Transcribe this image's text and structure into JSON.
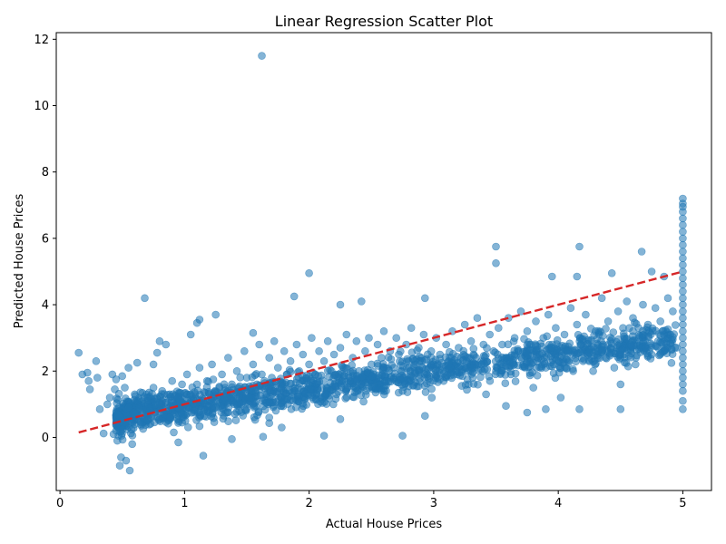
{
  "chart_data": {
    "type": "scatter",
    "title": "Linear Regression Scatter Plot",
    "xlabel": "Actual House Prices",
    "ylabel": "Predicted House Prices",
    "xlim": [
      -0.03,
      5.23
    ],
    "ylim": [
      -1.6,
      12.2
    ],
    "xticks": [
      0,
      1,
      2,
      3,
      4,
      5
    ],
    "yticks": [
      0,
      2,
      4,
      6,
      8,
      10,
      12
    ],
    "grid": false,
    "legend": "none",
    "point_color": "#1f77b4",
    "point_alpha": 0.55,
    "regression_line": {
      "x": [
        0.15,
        5.0
      ],
      "y": [
        0.15,
        5.0
      ],
      "color": "#d62728",
      "style": "dashed"
    },
    "series": [
      {
        "points": [
          [
            0.15,
            2.55
          ],
          [
            0.18,
            1.9
          ],
          [
            0.22,
            1.95
          ],
          [
            0.23,
            1.7
          ],
          [
            0.24,
            1.45
          ],
          [
            0.29,
            2.3
          ],
          [
            0.3,
            1.8
          ],
          [
            0.32,
            0.85
          ],
          [
            0.35,
            0.12
          ],
          [
            0.38,
            1.0
          ],
          [
            0.4,
            1.2
          ],
          [
            0.42,
            1.9
          ],
          [
            0.43,
            0.1
          ],
          [
            0.44,
            1.45
          ],
          [
            0.45,
            1.75
          ],
          [
            0.46,
            -0.1
          ],
          [
            0.47,
            0.05
          ],
          [
            0.48,
            -0.85
          ],
          [
            0.49,
            -0.6
          ],
          [
            0.5,
            1.85
          ],
          [
            0.52,
            1.5
          ],
          [
            0.53,
            -0.7
          ],
          [
            0.55,
            2.1
          ],
          [
            0.56,
            -1.0
          ],
          [
            0.58,
            -0.2
          ],
          [
            0.6,
            1.3
          ],
          [
            0.62,
            2.25
          ],
          [
            0.68,
            4.2
          ],
          [
            0.75,
            2.2
          ],
          [
            0.78,
            2.55
          ],
          [
            0.8,
            2.9
          ],
          [
            0.85,
            2.8
          ],
          [
            0.88,
            0.6
          ],
          [
            0.95,
            -0.15
          ],
          [
            1.05,
            3.1
          ],
          [
            1.1,
            3.45
          ],
          [
            1.12,
            3.55
          ],
          [
            1.15,
            -0.55
          ],
          [
            1.25,
            3.7
          ],
          [
            1.38,
            -0.05
          ],
          [
            1.55,
            3.15
          ],
          [
            1.62,
            11.5
          ],
          [
            1.63,
            0.02
          ],
          [
            1.68,
            0.6
          ],
          [
            1.78,
            0.3
          ],
          [
            1.88,
            4.25
          ],
          [
            2.0,
            4.95
          ],
          [
            2.12,
            0.05
          ],
          [
            2.25,
            4.0
          ],
          [
            2.25,
            0.55
          ],
          [
            2.42,
            4.1
          ],
          [
            2.75,
            0.05
          ],
          [
            2.93,
            4.2
          ],
          [
            2.93,
            0.65
          ],
          [
            3.5,
            5.75
          ],
          [
            3.5,
            5.25
          ],
          [
            3.58,
            0.95
          ],
          [
            3.75,
            0.75
          ],
          [
            3.9,
            0.85
          ],
          [
            3.95,
            4.85
          ],
          [
            4.15,
            4.85
          ],
          [
            4.17,
            5.75
          ],
          [
            4.17,
            0.85
          ],
          [
            4.43,
            4.95
          ],
          [
            4.5,
            0.85
          ],
          [
            4.5,
            1.6
          ],
          [
            4.67,
            5.6
          ],
          [
            4.75,
            5.0
          ],
          [
            4.85,
            4.85
          ],
          [
            0.5,
            0.5
          ],
          [
            0.55,
            0.9
          ],
          [
            0.6,
            0.7
          ],
          [
            0.62,
            1.1
          ],
          [
            0.65,
            0.4
          ],
          [
            0.7,
            1.2
          ],
          [
            0.72,
            0.8
          ],
          [
            0.75,
            1.5
          ],
          [
            0.78,
            0.6
          ],
          [
            0.8,
            1.0
          ],
          [
            0.82,
            1.4
          ],
          [
            0.85,
            0.9
          ],
          [
            0.88,
            1.3
          ],
          [
            0.9,
            1.7
          ],
          [
            0.92,
            0.7
          ],
          [
            0.95,
            1.2
          ],
          [
            0.98,
            1.6
          ],
          [
            1.0,
            1.0
          ],
          [
            1.02,
            1.9
          ],
          [
            1.05,
            1.3
          ],
          [
            1.08,
            0.8
          ],
          [
            1.1,
            1.6
          ],
          [
            1.12,
            2.1
          ],
          [
            1.15,
            1.1
          ],
          [
            1.18,
            1.7
          ],
          [
            1.2,
            1.3
          ],
          [
            1.22,
            2.2
          ],
          [
            1.25,
            0.9
          ],
          [
            1.28,
            1.5
          ],
          [
            1.3,
            1.9
          ],
          [
            1.32,
            1.2
          ],
          [
            1.35,
            2.4
          ],
          [
            1.38,
            1.6
          ],
          [
            1.4,
            1.0
          ],
          [
            1.42,
            2.0
          ],
          [
            1.45,
            1.4
          ],
          [
            1.48,
            2.6
          ],
          [
            1.5,
            1.8
          ],
          [
            1.52,
            1.2
          ],
          [
            1.55,
            2.2
          ],
          [
            1.58,
            1.6
          ],
          [
            1.6,
            2.8
          ],
          [
            1.62,
            1.9
          ],
          [
            1.65,
            1.3
          ],
          [
            1.68,
            2.4
          ],
          [
            1.7,
            1.8
          ],
          [
            1.72,
            2.9
          ],
          [
            1.75,
            2.1
          ],
          [
            1.78,
            1.5
          ],
          [
            1.8,
            2.6
          ],
          [
            1.82,
            1.9
          ],
          [
            1.85,
            2.3
          ],
          [
            1.88,
            1.4
          ],
          [
            1.9,
            2.8
          ],
          [
            1.92,
            2.0
          ],
          [
            1.95,
            2.5
          ],
          [
            1.98,
            1.7
          ],
          [
            2.0,
            2.2
          ],
          [
            2.02,
            3.0
          ],
          [
            2.05,
            1.9
          ],
          [
            2.08,
            2.6
          ],
          [
            2.1,
            1.5
          ],
          [
            2.12,
            2.3
          ],
          [
            2.15,
            2.9
          ],
          [
            2.18,
            2.0
          ],
          [
            2.2,
            2.5
          ],
          [
            2.22,
            1.3
          ],
          [
            2.25,
            2.7
          ],
          [
            2.28,
            2.1
          ],
          [
            2.3,
            3.1
          ],
          [
            2.32,
            1.8
          ],
          [
            2.35,
            2.4
          ],
          [
            2.38,
            2.9
          ],
          [
            2.4,
            2.0
          ],
          [
            2.42,
            1.6
          ],
          [
            2.45,
            2.6
          ],
          [
            2.48,
            3.0
          ],
          [
            2.5,
            2.2
          ],
          [
            2.52,
            1.9
          ],
          [
            2.55,
            2.8
          ],
          [
            2.58,
            2.4
          ],
          [
            2.6,
            3.2
          ],
          [
            2.62,
            1.7
          ],
          [
            2.65,
            2.6
          ],
          [
            2.68,
            2.1
          ],
          [
            2.7,
            3.0
          ],
          [
            2.72,
            2.5
          ],
          [
            2.75,
            1.4
          ],
          [
            2.78,
            2.8
          ],
          [
            2.8,
            2.3
          ],
          [
            2.82,
            3.3
          ],
          [
            2.85,
            2.0
          ],
          [
            2.88,
            2.7
          ],
          [
            2.9,
            2.4
          ],
          [
            2.92,
            3.1
          ],
          [
            2.95,
            1.9
          ],
          [
            2.98,
            2.6
          ],
          [
            3.0,
            2.2
          ],
          [
            3.02,
            3.0
          ],
          [
            3.05,
            2.5
          ],
          [
            3.08,
            1.7
          ],
          [
            3.1,
            2.8
          ],
          [
            3.12,
            2.3
          ],
          [
            3.15,
            3.2
          ],
          [
            3.18,
            2.0
          ],
          [
            3.2,
            2.7
          ],
          [
            3.22,
            2.4
          ],
          [
            3.25,
            3.4
          ],
          [
            3.28,
            1.6
          ],
          [
            3.3,
            2.9
          ],
          [
            3.32,
            2.5
          ],
          [
            3.35,
            3.6
          ],
          [
            3.38,
            2.2
          ],
          [
            3.4,
            2.8
          ],
          [
            3.42,
            1.3
          ],
          [
            3.45,
            3.1
          ],
          [
            3.48,
            2.6
          ],
          [
            3.5,
            2.0
          ],
          [
            3.52,
            3.3
          ],
          [
            3.55,
            2.8
          ],
          [
            3.58,
            2.4
          ],
          [
            3.6,
            3.6
          ],
          [
            3.62,
            1.9
          ],
          [
            3.65,
            3.0
          ],
          [
            3.68,
            2.6
          ],
          [
            3.7,
            3.8
          ],
          [
            3.72,
            2.2
          ],
          [
            3.75,
            3.2
          ],
          [
            3.78,
            2.8
          ],
          [
            3.8,
            1.5
          ],
          [
            3.82,
            3.5
          ],
          [
            3.85,
            2.5
          ],
          [
            3.88,
            3.0
          ],
          [
            3.9,
            2.1
          ],
          [
            3.92,
            3.7
          ],
          [
            3.95,
            2.7
          ],
          [
            3.98,
            3.3
          ],
          [
            4.0,
            2.3
          ],
          [
            4.02,
            1.2
          ],
          [
            4.05,
            3.1
          ],
          [
            4.08,
            2.6
          ],
          [
            4.1,
            3.9
          ],
          [
            4.12,
            2.0
          ],
          [
            4.15,
            3.4
          ],
          [
            4.18,
            2.8
          ],
          [
            4.2,
            2.3
          ],
          [
            4.22,
            3.7
          ],
          [
            4.25,
            2.9
          ],
          [
            4.28,
            2.0
          ],
          [
            4.3,
            3.2
          ],
          [
            4.32,
            2.6
          ],
          [
            4.35,
            4.2
          ],
          [
            4.38,
            2.4
          ],
          [
            4.4,
            3.5
          ],
          [
            4.42,
            2.9
          ],
          [
            4.45,
            2.1
          ],
          [
            4.48,
            3.8
          ],
          [
            4.5,
            2.6
          ],
          [
            4.52,
            3.3
          ],
          [
            4.55,
            4.1
          ],
          [
            4.58,
            2.8
          ],
          [
            4.6,
            3.6
          ],
          [
            4.62,
            2.2
          ],
          [
            4.65,
            3.0
          ],
          [
            4.68,
            4.0
          ],
          [
            4.7,
            2.7
          ],
          [
            4.72,
            3.4
          ],
          [
            4.75,
            2.5
          ],
          [
            4.78,
            3.9
          ],
          [
            4.8,
            2.9
          ],
          [
            4.82,
            3.5
          ],
          [
            4.85,
            2.6
          ],
          [
            4.88,
            4.2
          ],
          [
            4.9,
            3.1
          ],
          [
            4.92,
            3.8
          ],
          [
            4.95,
            2.7
          ],
          [
            5.0,
            7.2
          ],
          [
            5.0,
            7.05
          ],
          [
            5.0,
            6.95
          ],
          [
            5.0,
            6.8
          ],
          [
            5.0,
            6.6
          ],
          [
            5.0,
            6.4
          ],
          [
            5.0,
            6.2
          ],
          [
            5.0,
            6.0
          ],
          [
            5.0,
            5.8
          ],
          [
            5.0,
            5.6
          ],
          [
            5.0,
            5.4
          ],
          [
            5.0,
            5.2
          ],
          [
            5.0,
            5.0
          ],
          [
            5.0,
            4.8
          ],
          [
            5.0,
            4.6
          ],
          [
            5.0,
            4.4
          ],
          [
            5.0,
            4.2
          ],
          [
            5.0,
            4.0
          ],
          [
            5.0,
            3.8
          ],
          [
            5.0,
            3.6
          ],
          [
            5.0,
            3.4
          ],
          [
            5.0,
            3.2
          ],
          [
            5.0,
            3.0
          ],
          [
            5.0,
            2.8
          ],
          [
            5.0,
            2.6
          ],
          [
            5.0,
            2.4
          ],
          [
            5.0,
            2.2
          ],
          [
            5.0,
            2.0
          ],
          [
            5.0,
            1.8
          ],
          [
            5.0,
            1.6
          ],
          [
            5.0,
            1.4
          ],
          [
            5.0,
            1.1
          ],
          [
            5.0,
            0.85
          ]
        ]
      }
    ]
  }
}
